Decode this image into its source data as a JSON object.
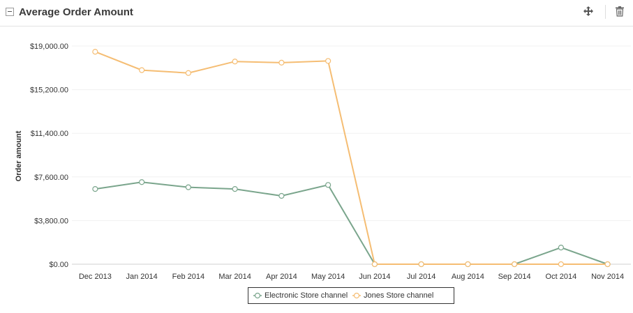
{
  "header": {
    "title": "Average Order Amount",
    "collapse_icon": "minus-box-icon",
    "move_icon": "move-arrows-icon",
    "delete_icon": "trash-icon"
  },
  "chart_data": {
    "type": "line",
    "ylabel": "Order amount",
    "xlabel": "",
    "categories": [
      "Dec 2013",
      "Jan 2014",
      "Feb 2014",
      "Mar 2014",
      "Apr 2014",
      "May 2014",
      "Jun 2014",
      "Jul 2014",
      "Aug 2014",
      "Sep 2014",
      "Oct 2014",
      "Nov 2014"
    ],
    "yticks": [
      "$0.00",
      "$3,800.00",
      "$7,600.00",
      "$11,400.00",
      "$15,200.00",
      "$19,000.00"
    ],
    "ylim": [
      0,
      19000
    ],
    "grid": true,
    "legend_position": "bottom",
    "series": [
      {
        "name": "Electronic Store channel",
        "color": "#7aa58c",
        "values": [
          6550,
          7150,
          6700,
          6550,
          5950,
          6900,
          0,
          0,
          0,
          0,
          1450,
          0
        ]
      },
      {
        "name": "Jones Store channel",
        "color": "#f5bd73",
        "values": [
          18500,
          16900,
          16650,
          17650,
          17550,
          17700,
          0,
          0,
          0,
          0,
          0,
          0
        ]
      }
    ]
  }
}
